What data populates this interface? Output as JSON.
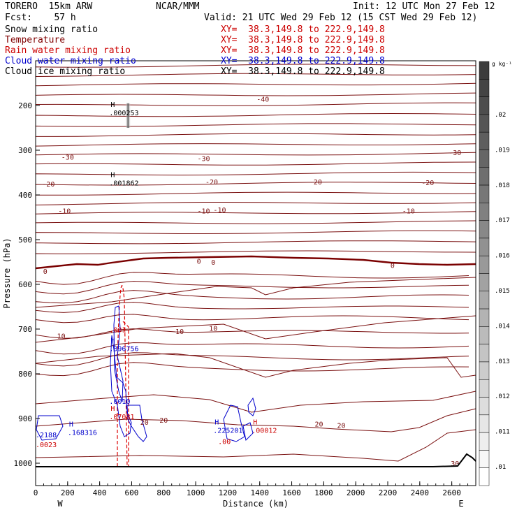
{
  "header": {
    "model": "TORERO  15km ARW",
    "center": "NCAR/MMM",
    "init": "Init: 12 UTC Mon 27 Feb 12",
    "fcst": "Fcst:    57 h",
    "valid": "Valid: 21 UTC Wed 29 Feb 12 (15 CST Wed 29 Feb 12)"
  },
  "fields": [
    {
      "name": "Snow mixing ratio",
      "xy": "XY=  38.3,149.8 to 222.9,149.8",
      "color": "#000000",
      "xy_color": "#cc0000"
    },
    {
      "name": "Temperature",
      "xy": "XY=  38.3,149.8 to 222.9,149.8",
      "color": "#800000",
      "xy_color": "#cc0000"
    },
    {
      "name": "Rain water mixing ratio",
      "xy": "XY=  38.3,149.8 to 222.9,149.8",
      "color": "#cc0000",
      "xy_color": "#cc0000"
    },
    {
      "name": "Cloud water mixing ratio",
      "xy": "XY=  38.3,149.8 to 222.9,149.8",
      "color": "#0000cc",
      "xy_color": "#0000cc"
    },
    {
      "name": "Cloud ice mixing ratio",
      "xy": "XY=  38.3,149.8 to 222.9,149.8",
      "color": "#000000",
      "xy_color": "#000000"
    }
  ],
  "chart_data": {
    "type": "contour-cross-section",
    "xlabel": "Distance (km)",
    "ylabel": "Pressure (hPa)",
    "xlim": [
      0,
      2750
    ],
    "ylim": [
      1050,
      100
    ],
    "x_ticks": [
      0,
      200,
      400,
      600,
      800,
      1000,
      1200,
      1400,
      1600,
      1800,
      2000,
      2200,
      2400,
      2600
    ],
    "y_ticks": [
      200,
      300,
      400,
      500,
      600,
      700,
      800,
      900,
      1000
    ],
    "end_labels": {
      "left": "W",
      "right": "E"
    },
    "colorbar": {
      "unit": "g kg⁻¹",
      "ticks": [
        ".02",
        ".019",
        ".018",
        ".017",
        ".016",
        ".015",
        ".014",
        ".013",
        ".012",
        ".011",
        ".01"
      ]
    },
    "temperature_labels": [
      {
        "x": 1420,
        "p": 185,
        "text": "-40"
      },
      {
        "x": 200,
        "p": 315,
        "text": "-30"
      },
      {
        "x": 1050,
        "p": 318,
        "text": "-30"
      },
      {
        "x": 2620,
        "p": 305,
        "text": "-30"
      },
      {
        "x": 80,
        "p": 375,
        "text": "-20"
      },
      {
        "x": 1100,
        "p": 370,
        "text": "-20"
      },
      {
        "x": 1750,
        "p": 370,
        "text": "-20"
      },
      {
        "x": 2450,
        "p": 372,
        "text": "-20"
      },
      {
        "x": 180,
        "p": 435,
        "text": "-10"
      },
      {
        "x": 1050,
        "p": 435,
        "text": "-10"
      },
      {
        "x": 1150,
        "p": 433,
        "text": "-10"
      },
      {
        "x": 2330,
        "p": 435,
        "text": "-10"
      },
      {
        "x": 60,
        "p": 570,
        "text": "0"
      },
      {
        "x": 1020,
        "p": 548,
        "text": "0"
      },
      {
        "x": 1110,
        "p": 550,
        "text": "0"
      },
      {
        "x": 2230,
        "p": 557,
        "text": "0"
      },
      {
        "x": 160,
        "p": 715,
        "text": "10"
      },
      {
        "x": 900,
        "p": 705,
        "text": "10"
      },
      {
        "x": 1110,
        "p": 698,
        "text": "10"
      },
      {
        "x": 680,
        "p": 908,
        "text": "20"
      },
      {
        "x": 800,
        "p": 903,
        "text": "20"
      },
      {
        "x": 1770,
        "p": 912,
        "text": "20"
      },
      {
        "x": 1910,
        "p": 915,
        "text": "20"
      },
      {
        "x": 2620,
        "p": 1000,
        "text": "30"
      }
    ],
    "extrema": [
      {
        "x": 460,
        "p": 200,
        "h": "H",
        "value": ".000253",
        "color": "#000000"
      },
      {
        "x": 460,
        "p": 357,
        "h": "H",
        "value": ".001862",
        "color": "#000000"
      },
      {
        "x": 460,
        "p": 727,
        "h": "H",
        "value": ".396756",
        "color": "#0000cc"
      },
      {
        "x": 460,
        "p": 685,
        "h": "",
        "value": ".001",
        "color": "#cc0000"
      },
      {
        "x": 460,
        "p": 845,
        "h": "",
        "value": ".0010",
        "color": "#0000cc"
      },
      {
        "x": 460,
        "p": 880,
        "h": "H",
        "value": ".07081",
        "color": "#cc0000"
      },
      {
        "x": 200,
        "p": 915,
        "h": "H",
        "value": ".168316",
        "color": "#0000cc"
      },
      {
        "x": 1110,
        "p": 910,
        "h": "H",
        "value": ".225201",
        "color": "#0000cc"
      },
      {
        "x": 1140,
        "p": 935,
        "h": "",
        "value": ".00",
        "color": "#cc0000"
      },
      {
        "x": 1350,
        "p": 910,
        "h": "H",
        "value": ".00012",
        "color": "#cc0000"
      },
      {
        "x": 0,
        "p": 920,
        "h": "",
        "value": ".2188",
        "color": "#0000cc"
      },
      {
        "x": 0,
        "p": 942,
        "h": "",
        "value": ".0023",
        "color": "#cc0000"
      }
    ]
  }
}
